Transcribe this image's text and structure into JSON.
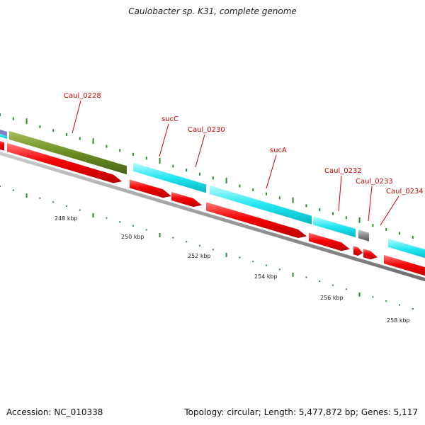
{
  "title": "Caulobacter sp. K31, complete genome",
  "accession_label": "Accession: NC_010338",
  "summary_label": "Topology: circular; Length: 5,477,872 bp; Genes: 5,117",
  "colors": {
    "cds_forward": "#00e5ee",
    "cds_reverse": "#ee0000",
    "rna_olive": "#6b8e23",
    "unknown_gray": "#808080",
    "backbone": "#999999",
    "tick": "#2e8b2e",
    "label": "#cc0000"
  },
  "gene_labels": [
    "Caul_0228",
    "sucC",
    "Caul_0230",
    "sucA",
    "Caul_0232",
    "Caul_0233",
    "Caul_0234"
  ],
  "tick_labels": [
    "248 kbp",
    "250 kbp",
    "252 kbp",
    "254 kbp",
    "256 kbp",
    "258 kbp"
  ]
}
